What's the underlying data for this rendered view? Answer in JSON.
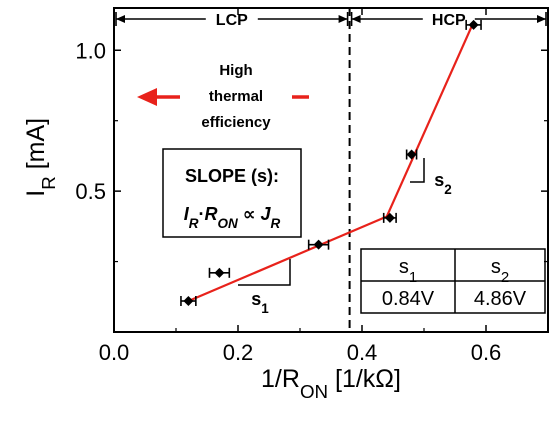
{
  "chart_data": {
    "type": "scatter",
    "xlabel": "1/R",
    "xlabel_sub": "ON",
    "xlabel_unit": " [1/kΩ]",
    "ylabel": "I",
    "ylabel_sub": "R",
    "ylabel_unit": " [mA]",
    "xlim": [
      0.0,
      0.7
    ],
    "ylim": [
      0.0,
      1.15
    ],
    "x_ticks": [
      0.0,
      0.2,
      0.4,
      0.6
    ],
    "x_tick_labels": [
      "0.0",
      "0.2",
      "0.4",
      "0.6"
    ],
    "y_ticks": [
      0.5,
      1.0
    ],
    "y_tick_labels": [
      "0.5",
      "1.0"
    ],
    "points": [
      {
        "x": 0.12,
        "y": 0.11,
        "xerr": 0.012
      },
      {
        "x": 0.17,
        "y": 0.21,
        "xerr": 0.016
      },
      {
        "x": 0.33,
        "y": 0.31,
        "xerr": 0.016
      },
      {
        "x": 0.445,
        "y": 0.405,
        "xerr": 0.01
      },
      {
        "x": 0.48,
        "y": 0.63,
        "xerr": 0.008
      },
      {
        "x": 0.58,
        "y": 1.09,
        "xerr": 0.012
      }
    ],
    "fit_lines": [
      {
        "x": [
          0.115,
          0.44
        ],
        "y": [
          0.105,
          0.41
        ],
        "color": "#e8221b"
      },
      {
        "x": [
          0.44,
          0.58
        ],
        "y": [
          0.41,
          1.1
        ],
        "color": "#e8221b"
      }
    ],
    "boundary_x": 0.38,
    "regions": [
      {
        "label": "LCP",
        "x": [
          0.0,
          0.38
        ]
      },
      {
        "label": "HCP",
        "x": [
          0.38,
          0.7
        ]
      }
    ],
    "annotations": {
      "high_thermal": [
        "High",
        "thermal",
        "efficiency"
      ],
      "slope_title": "SLOPE (s):",
      "slope_eq": {
        "i": "I",
        "i_sub": "R",
        "dot": "·",
        "r": "R",
        "r_sub": "ON",
        "prop": " ∝ ",
        "j": "J",
        "j_sub": "R"
      },
      "s1_mark": {
        "s": "s",
        "sub": "1"
      },
      "s2_mark": {
        "s": "s",
        "sub": "2"
      }
    },
    "table": {
      "headers": [
        {
          "s": "s",
          "sub": "1"
        },
        {
          "s": "s",
          "sub": "2"
        }
      ],
      "values": [
        "0.84V",
        "4.86V"
      ]
    },
    "colors": {
      "fit": "#e8221b",
      "arrow": "#e8221b",
      "points": "#000000"
    }
  }
}
